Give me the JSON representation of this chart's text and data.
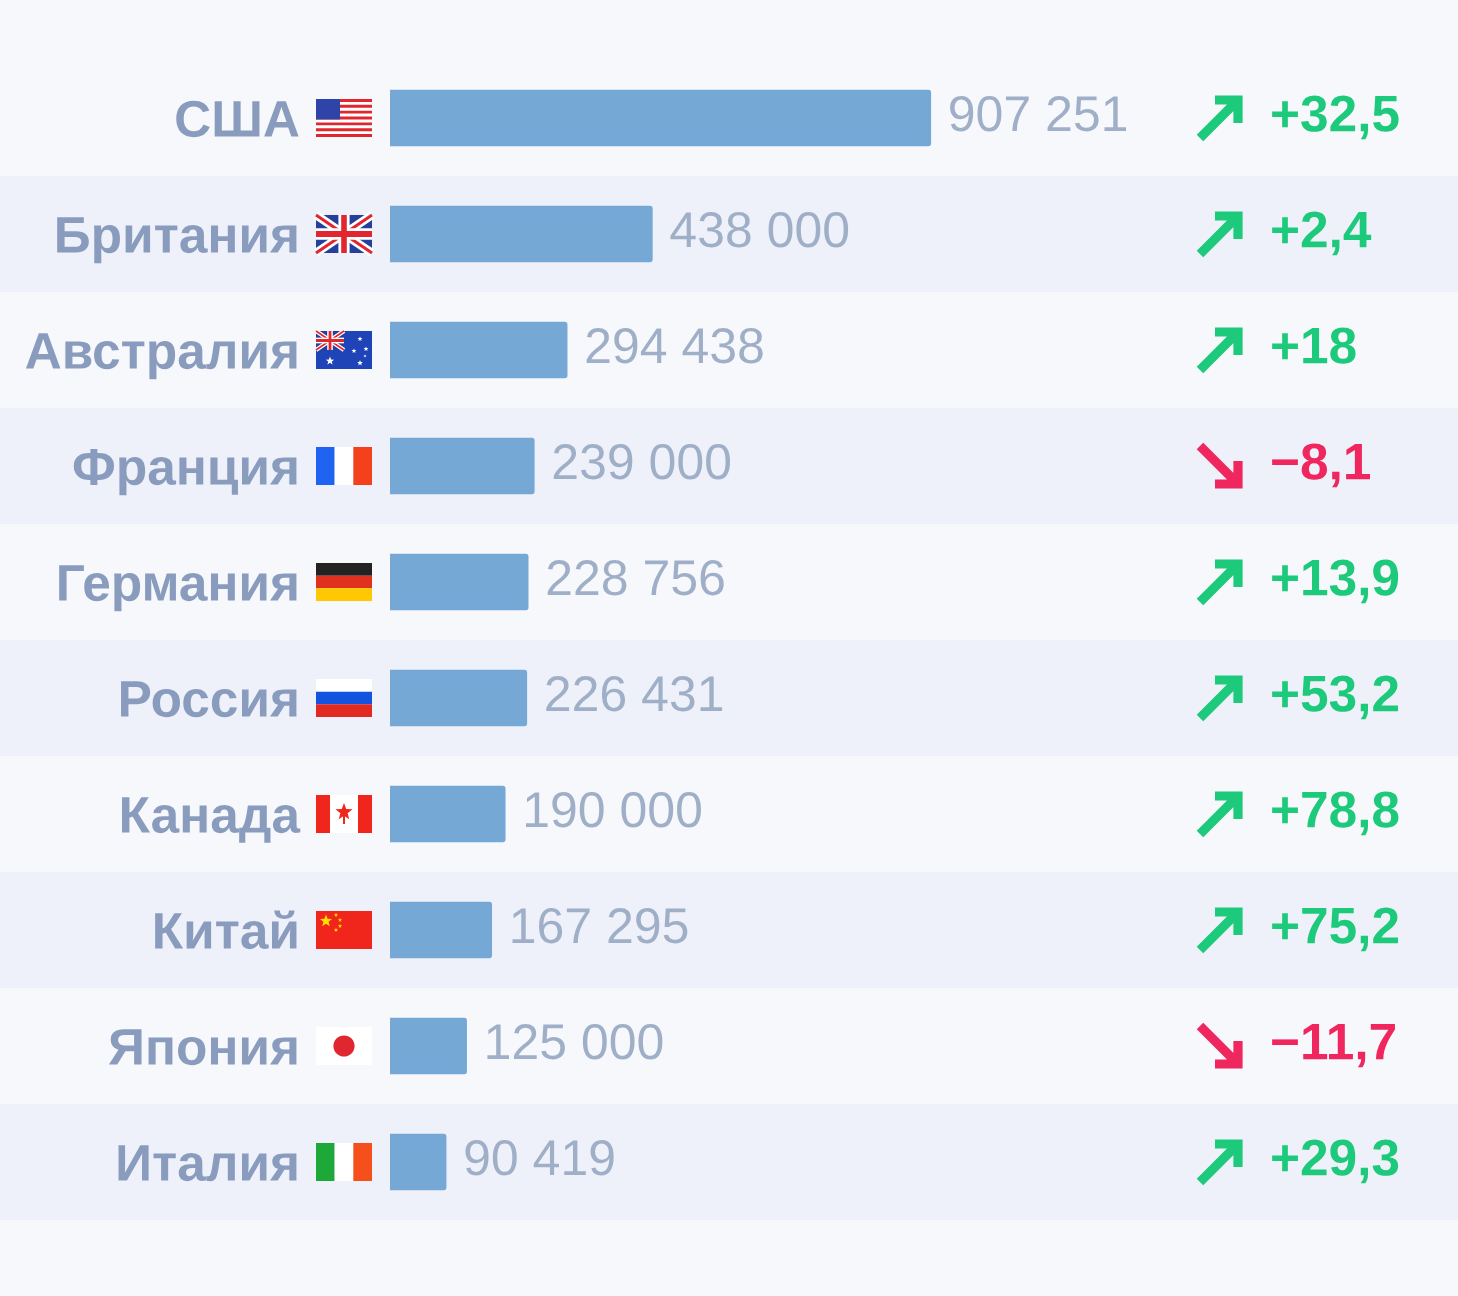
{
  "chart_data": {
    "type": "bar",
    "orientation": "horizontal",
    "categories": [
      "США",
      "Британия",
      "Австралия",
      "Франция",
      "Германия",
      "Россия",
      "Канада",
      "Китай",
      "Япония",
      "Италия"
    ],
    "values": [
      907251,
      438000,
      294438,
      239000,
      228756,
      226431,
      190000,
      167295,
      125000,
      90419
    ],
    "color": "#76a8d6",
    "value_labels": [
      "907 251",
      "438 000",
      "294 438",
      "239 000",
      "228 756",
      "226 431",
      "190 000",
      "167 295",
      "125 000",
      "90 419"
    ],
    "xlim": [
      0,
      1800000
    ],
    "tick_labels": "y",
    "annotations": [
      "+32,5",
      "+2,4",
      "+18",
      "−8,1",
      "+13,9",
      "+53,2",
      "+78,8",
      "+75,2",
      "−11,7",
      "+29,3"
    ]
  }
}
